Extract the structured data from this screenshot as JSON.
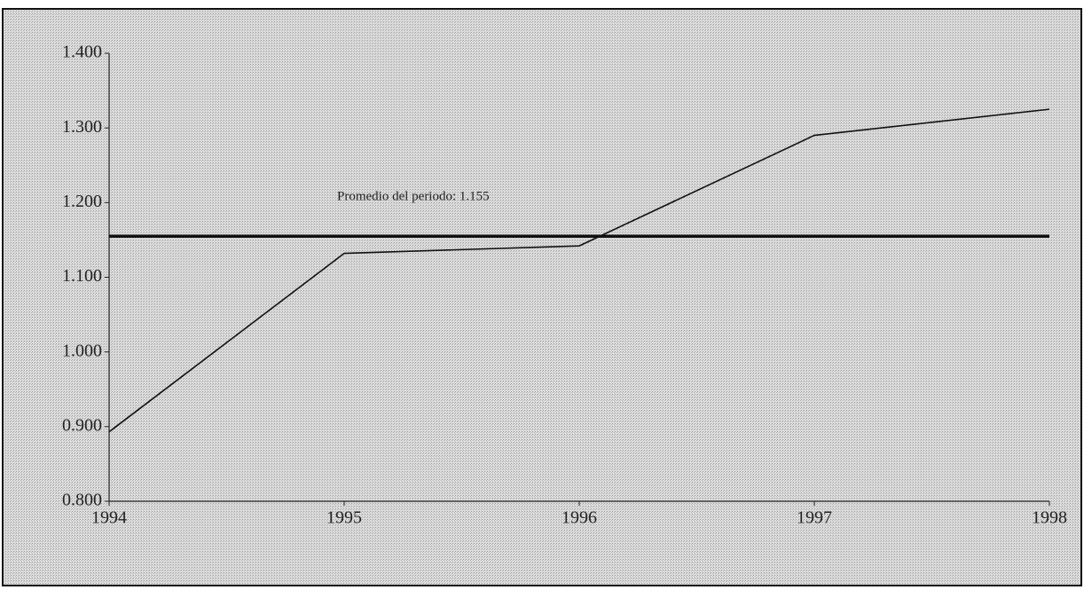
{
  "chart_data": {
    "type": "line",
    "x": [
      1994,
      1995,
      1996,
      1997,
      1998
    ],
    "values": [
      0.893,
      1.132,
      1.142,
      1.29,
      1.325
    ],
    "color": "#111111",
    "reference_line": 1.155,
    "annotation": "Promedio del periodo: 1.155",
    "xlim": [
      1994,
      1998
    ],
    "xticks": [
      1994,
      1995,
      1996,
      1997,
      1998
    ],
    "ylim": [
      0.8,
      1.4
    ],
    "yticks": [
      {
        "value": 0.8,
        "label": "0.800"
      },
      {
        "value": 0.9,
        "label": "0.900"
      },
      {
        "value": 1,
        "label": "1.000"
      },
      {
        "value": 1.1,
        "label": "1.100"
      },
      {
        "value": 1.2,
        "label": "1.200"
      },
      {
        "value": 1.3,
        "label": "1.300"
      },
      {
        "value": 1.4,
        "label": "1.400"
      }
    ],
    "grid": false
  }
}
